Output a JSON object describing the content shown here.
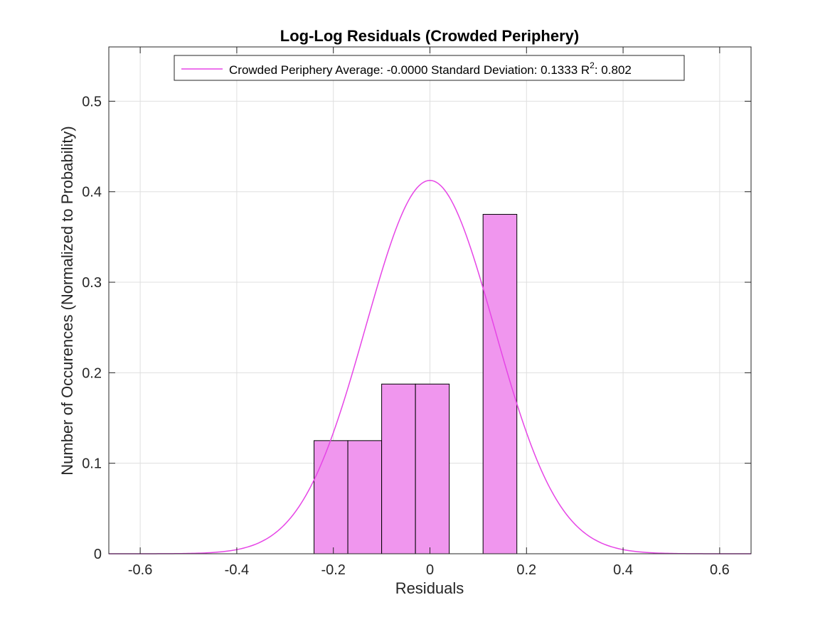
{
  "chart_data": {
    "type": "bar",
    "title": "Log-Log Residuals (Crowded Periphery)",
    "xlabel": "Residuals",
    "ylabel": "Number of Occurences (Normalized to Probability)",
    "xlim": [
      -0.665,
      0.665
    ],
    "ylim": [
      0,
      0.56
    ],
    "xticks": [
      -0.6,
      -0.4,
      -0.2,
      0,
      0.2,
      0.4,
      0.6
    ],
    "xtick_labels": [
      "-0.6",
      "-0.4",
      "-0.2",
      "0",
      "0.2",
      "0.4",
      "0.6"
    ],
    "yticks": [
      0,
      0.1,
      0.2,
      0.3,
      0.4,
      0.5
    ],
    "ytick_labels": [
      "0",
      "0.1",
      "0.2",
      "0.3",
      "0.4",
      "0.5"
    ],
    "grid": true,
    "legend_position": "top",
    "histogram": {
      "bin_edges": [
        -0.24,
        -0.17,
        -0.1,
        -0.03,
        0.04,
        0.11,
        0.18
      ],
      "values": [
        0.125,
        0.125,
        0.1875,
        0.1875,
        0,
        0.375
      ],
      "face_color": "#f096ee",
      "edge_color": "#000000"
    },
    "fit_curve": {
      "distribution": "normal",
      "mean": 0.0,
      "std": 0.1333,
      "peak": 0.4125,
      "color": "#e645e6"
    },
    "legend": {
      "label": "Crowded Periphery Average: -0.0000 Standard Deviation: 0.1333 R",
      "superscript": "2",
      "suffix": ": 0.802"
    }
  }
}
